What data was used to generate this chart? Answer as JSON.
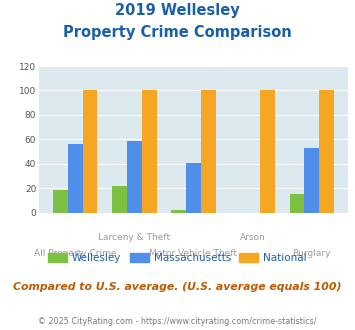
{
  "title_line1": "2019 Wellesley",
  "title_line2": "Property Crime Comparison",
  "categories": [
    "All Property Crime",
    "Larceny & Theft",
    "Motor Vehicle Theft",
    "Arson",
    "Burglary"
  ],
  "wellesley": [
    19,
    22,
    2,
    0,
    15
  ],
  "massachusetts": [
    56,
    59,
    41,
    0,
    53
  ],
  "national": [
    100,
    100,
    100,
    100,
    100
  ],
  "color_wellesley": "#7dc142",
  "color_massachusetts": "#4f8fea",
  "color_national": "#f5a623",
  "ylim": [
    0,
    120
  ],
  "yticks": [
    0,
    20,
    40,
    60,
    80,
    100,
    120
  ],
  "background_color": "#dce9ef",
  "footer_text": "© 2025 CityRating.com - https://www.cityrating.com/crime-statistics/",
  "subtitle_text": "Compared to U.S. average. (U.S. average equals 100)",
  "title_color": "#1a5fa8",
  "subtitle_color": "#c05a00",
  "footer_color": "#7a7a7a",
  "xlabel_color": "#9a9a9a",
  "legend_label_color": "#1a5fa8"
}
